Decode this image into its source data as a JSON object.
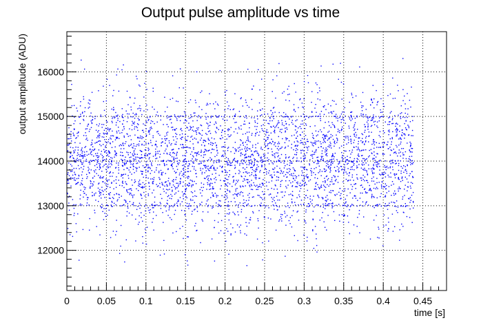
{
  "chart_data": {
    "type": "scatter",
    "title": "Output pulse amplitude vs time",
    "xlabel": "time [s]",
    "ylabel": "output amplitude (ADU)",
    "xlim": [
      0,
      0.48
    ],
    "ylim": [
      11100,
      16900
    ],
    "x_ticks": [
      0,
      0.05,
      0.1,
      0.15,
      0.2,
      0.25,
      0.3,
      0.35,
      0.4,
      0.45
    ],
    "x_tick_labels": [
      "0",
      "0.05",
      "0.1",
      "0.15",
      "0.2",
      "0.25",
      "0.3",
      "0.35",
      "0.4",
      "0.45"
    ],
    "y_ticks": [
      12000,
      13000,
      14000,
      15000,
      16000
    ],
    "y_tick_labels": [
      "12000",
      "13000",
      "14000",
      "15000",
      "16000"
    ],
    "grid": true,
    "grid_style": "dotted",
    "legend": false,
    "series": [
      {
        "color": "#0000ff",
        "x_range": [
          0,
          0.438
        ],
        "n_points": 4000,
        "y_mean": 14000,
        "y_std": 750,
        "y_min": 11650,
        "y_max": 16350,
        "clustering_levels": [
          13000,
          14000,
          15000
        ],
        "note_on_values": "Dense scatter of ~4000 pulses; individual values are not labeled and are summarized by their distribution."
      }
    ]
  }
}
